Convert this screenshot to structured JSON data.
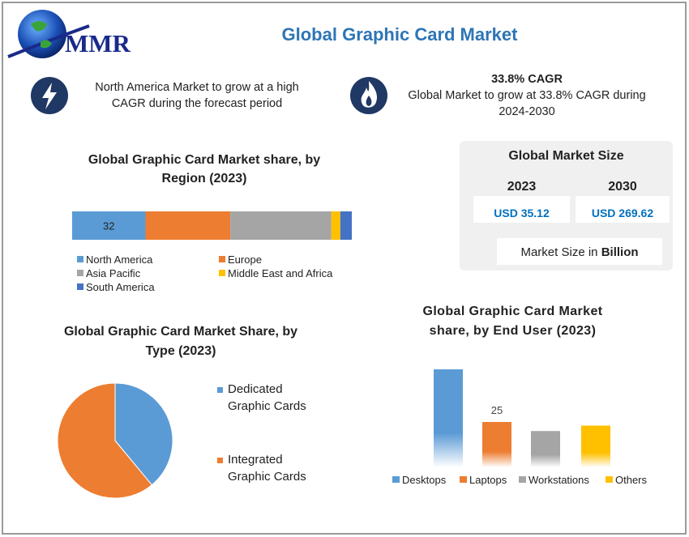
{
  "logo": "MMR",
  "title": "Global Graphic Card Market",
  "highlights": [
    {
      "text": "North America Market to grow at a high CAGR during the forecast period"
    },
    {
      "heading": "33.8% CAGR",
      "text": "Global Market to grow at 33.8% CAGR during 2024-2030"
    }
  ],
  "market_size": {
    "title": "Global Market Size",
    "columns": [
      {
        "year": "2023",
        "value": "USD 35.12"
      },
      {
        "year": "2030",
        "value": "USD 269.62"
      }
    ],
    "note": "Market Size in",
    "note_bold": "Billion"
  },
  "chart_data": [
    {
      "type": "stacked-bar",
      "title": "Global Graphic Card Market share, by Region (2023)",
      "series": [
        {
          "name": "North America",
          "color": "#5b9bd5",
          "values": [
            32
          ],
          "value_labels": [
            "32"
          ]
        },
        {
          "name": "Europe",
          "color": "#ed7d31",
          "values": [
            37
          ]
        },
        {
          "name": "Asia Pacific",
          "color": "#a5a5a5",
          "values": [
            44
          ]
        },
        {
          "name": "Middle East and Africa",
          "color": "#ffc000",
          "values": [
            4
          ]
        },
        {
          "name": "South America",
          "color": "#4472c4",
          "values": [
            5
          ]
        }
      ]
    },
    {
      "type": "pie",
      "title": "Global Graphic Card Market Share, by Type (2023)",
      "categories": [
        "Dedicated Graphic Cards",
        "Integrated Graphic Cards"
      ],
      "values": [
        39,
        61
      ],
      "colors": [
        "#5b9bd5",
        "#ed7d31"
      ]
    },
    {
      "type": "bar",
      "title": "Global Graphic Card Market share, by End User (2023)",
      "categories": [
        "Desktops",
        "Laptops",
        "Workstations",
        "Others"
      ],
      "values": [
        54,
        25,
        20,
        23
      ],
      "value_labels": [
        null,
        "25",
        null,
        null
      ],
      "colors": [
        "#5b9bd5",
        "#ed7d31",
        "#a5a5a5",
        "#ffc000"
      ]
    }
  ]
}
